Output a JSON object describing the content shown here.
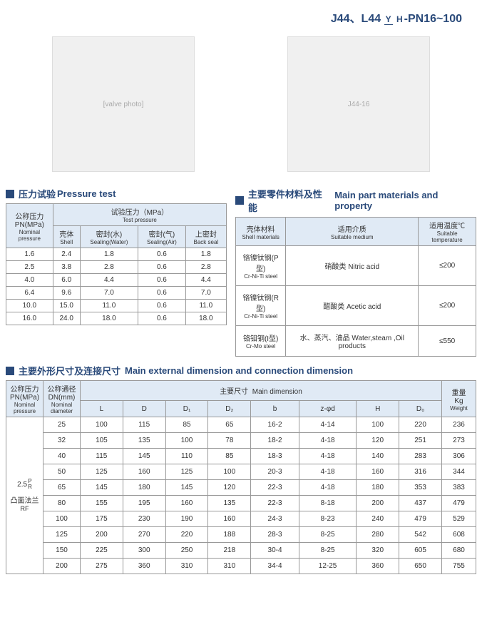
{
  "model": {
    "prefix": "J44、L44",
    "frac_top": "Y",
    "frac_bot": "H",
    "suffix": "-PN16~100"
  },
  "diagram_label": "J44-16",
  "pressure_test": {
    "title_cn": "压力试验",
    "title_en": "Pressure test",
    "headers": {
      "pn_cn": "公称压力",
      "pn_pn": "PN(MPa)",
      "pn_en1": "Nominal",
      "pn_en2": "pressure",
      "tp_cn": "试验压力（MPa）",
      "tp_en": "Test pressure",
      "shell_cn": "壳体",
      "shell_en": "Shell",
      "sealw_cn": "密封(水)",
      "sealw_en": "Sealing(Water)",
      "seala_cn": "密封(气)",
      "seala_en": "Sealing(Air)",
      "back_cn": "上密封",
      "back_en": "Back seal"
    },
    "rows": [
      {
        "pn": "1.6",
        "shell": "2.4",
        "sw": "1.8",
        "sa": "0.6",
        "bs": "1.8"
      },
      {
        "pn": "2.5",
        "shell": "3.8",
        "sw": "2.8",
        "sa": "0.6",
        "bs": "2.8"
      },
      {
        "pn": "4.0",
        "shell": "6.0",
        "sw": "4.4",
        "sa": "0.6",
        "bs": "4.4"
      },
      {
        "pn": "6.4",
        "shell": "9.6",
        "sw": "7.0",
        "sa": "0.6",
        "bs": "7.0"
      },
      {
        "pn": "10.0",
        "shell": "15.0",
        "sw": "11.0",
        "sa": "0.6",
        "bs": "11.0"
      },
      {
        "pn": "16.0",
        "shell": "24.0",
        "sw": "18.0",
        "sa": "0.6",
        "bs": "18.0"
      }
    ]
  },
  "materials": {
    "title_cn": "主要零件材料及性能",
    "title_en": "Main part materials and property",
    "headers": {
      "mat_cn": "壳体材料",
      "mat_en": "Shell materials",
      "med_cn": "适用介质",
      "med_en": "Suitable medium",
      "temp_cn": "适用温度℃",
      "temp_en": "Suitable temperature"
    },
    "rows": [
      {
        "mat_cn": "铬镍钛钢(P型)",
        "mat_en": "Cr-Ni-Ti steel",
        "med_cn": "硝酸类",
        "med_en": "Nitric acid",
        "temp": "≤200"
      },
      {
        "mat_cn": "铬镍钛钢(R型)",
        "mat_en": "Cr-Ni-Ti steel",
        "med_cn": "醋酸类",
        "med_en": "Acetic acid",
        "temp": "≤200"
      },
      {
        "mat_cn": "铬钼钢(I型)",
        "mat_en": "Cr-Mo steel",
        "med_cn": "水、蒸汽、油品",
        "med_en": "Water,steam ,Oil products",
        "temp": "≤550"
      }
    ]
  },
  "dimensions": {
    "title_cn": "主要外形尺寸及连接尺寸",
    "title_en": "Main external dimension and connection dimension",
    "headers": {
      "pn_cn": "公称压力",
      "pn_pn": "PN(MPa)",
      "pn_en1": "Nominal",
      "pn_en2": "pressure",
      "dn_cn": "公称通径",
      "dn_dn": "DN(mm)",
      "dn_en1": "Nominal",
      "dn_en2": "diameter",
      "md_cn": "主要尺寸",
      "md_en": "Main dimension",
      "wt_cn": "重量",
      "wt_kg": "Kg",
      "wt_en": "Weight",
      "L": "L",
      "D": "D",
      "D1": "D₁",
      "D2": "D₂",
      "b": "b",
      "zphi": "z-φd",
      "H": "H",
      "D0": "D₀"
    },
    "pn_group": "2.5",
    "pn_suffix_top": "P",
    "pn_suffix_bot": "R",
    "pn_flange_cn": "凸面法兰",
    "pn_flange_en": "RF",
    "rows": [
      {
        "dn": "25",
        "L": "100",
        "D": "115",
        "D1": "85",
        "D2": "65",
        "b": "16-2",
        "zphi": "4-14",
        "H": "100",
        "D0": "220",
        "wt": "236"
      },
      {
        "dn": "32",
        "L": "105",
        "D": "135",
        "D1": "100",
        "D2": "78",
        "b": "18-2",
        "zphi": "4-18",
        "H": "120",
        "D0": "251",
        "wt": "273"
      },
      {
        "dn": "40",
        "L": "115",
        "D": "145",
        "D1": "110",
        "D2": "85",
        "b": "18-3",
        "zphi": "4-18",
        "H": "140",
        "D0": "283",
        "wt": "306"
      },
      {
        "dn": "50",
        "L": "125",
        "D": "160",
        "D1": "125",
        "D2": "100",
        "b": "20-3",
        "zphi": "4-18",
        "H": "160",
        "D0": "316",
        "wt": "344"
      },
      {
        "dn": "65",
        "L": "145",
        "D": "180",
        "D1": "145",
        "D2": "120",
        "b": "22-3",
        "zphi": "4-18",
        "H": "180",
        "D0": "353",
        "wt": "383"
      },
      {
        "dn": "80",
        "L": "155",
        "D": "195",
        "D1": "160",
        "D2": "135",
        "b": "22-3",
        "zphi": "8-18",
        "H": "200",
        "D0": "437",
        "wt": "479"
      },
      {
        "dn": "100",
        "L": "175",
        "D": "230",
        "D1": "190",
        "D2": "160",
        "b": "24-3",
        "zphi": "8-23",
        "H": "240",
        "D0": "479",
        "wt": "529"
      },
      {
        "dn": "125",
        "L": "200",
        "D": "270",
        "D1": "220",
        "D2": "188",
        "b": "28-3",
        "zphi": "8-25",
        "H": "280",
        "D0": "542",
        "wt": "608"
      },
      {
        "dn": "150",
        "L": "225",
        "D": "300",
        "D1": "250",
        "D2": "218",
        "b": "30-4",
        "zphi": "8-25",
        "H": "320",
        "D0": "605",
        "wt": "680"
      },
      {
        "dn": "200",
        "L": "275",
        "D": "360",
        "D1": "310",
        "D2": "310",
        "b": "34-4",
        "zphi": "12-25",
        "H": "360",
        "D0": "650",
        "wt": "755"
      }
    ]
  }
}
